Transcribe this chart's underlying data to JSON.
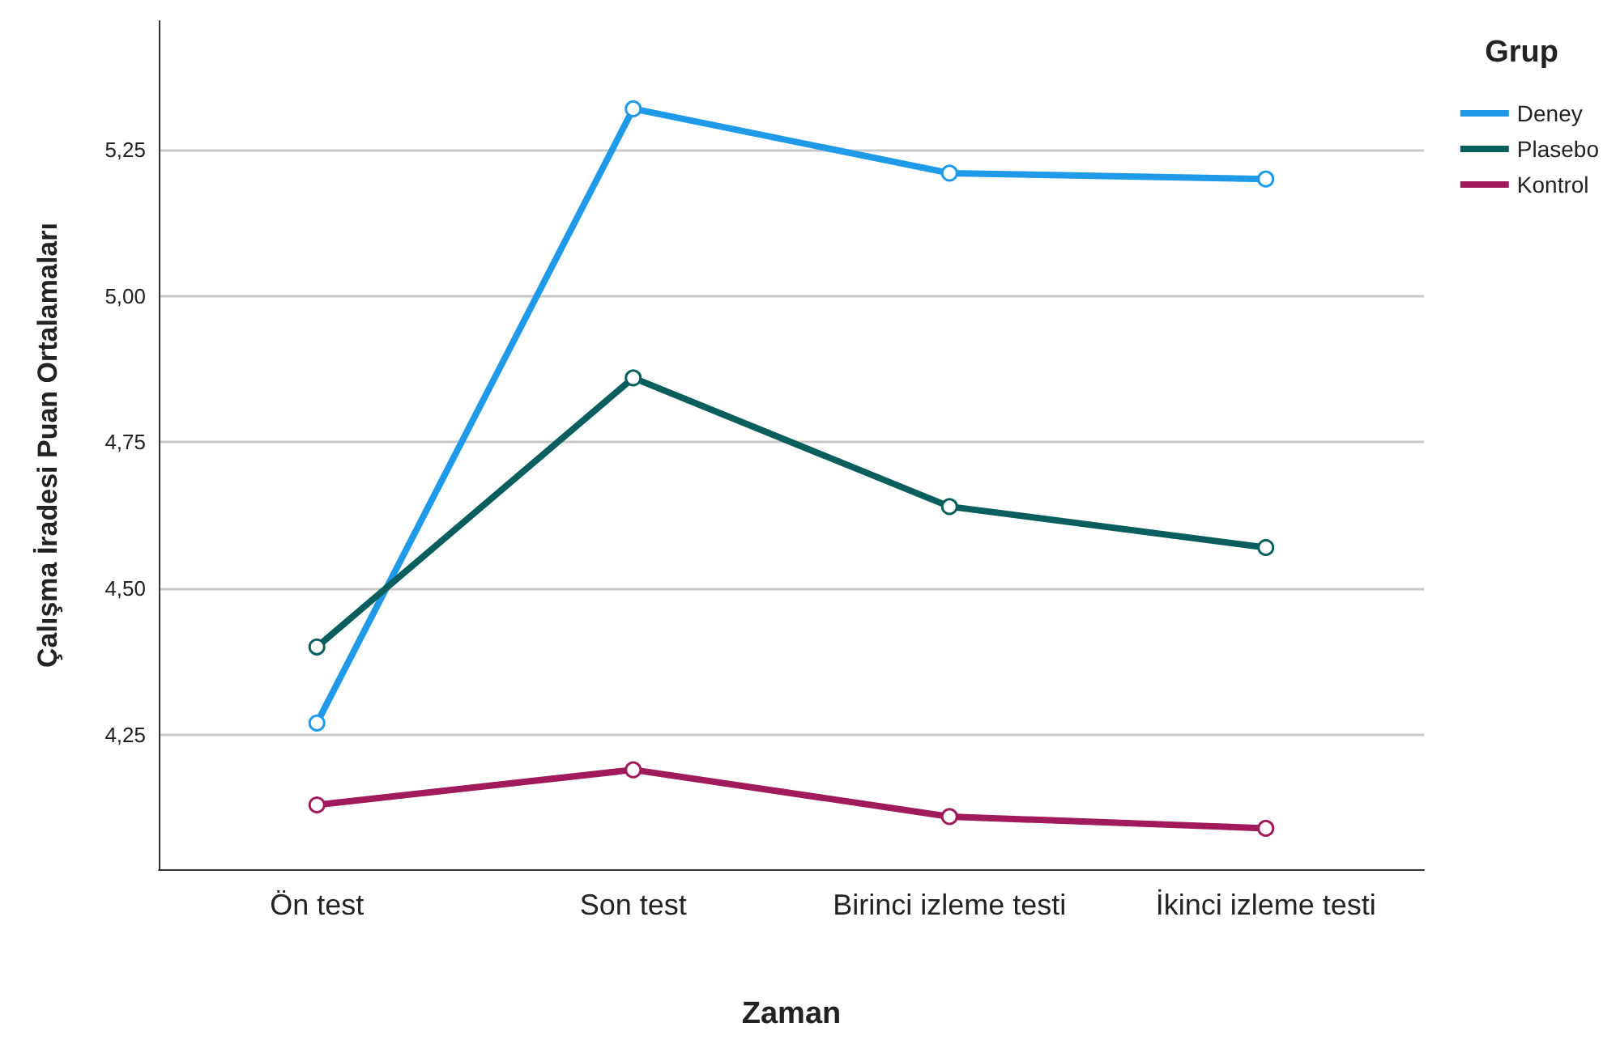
{
  "chart_data": {
    "type": "line",
    "xlabel": "Zaman",
    "ylabel": "Çalışma İradesi Puan Ortalamaları",
    "legend_title": "Grup",
    "legend": "top right",
    "grid": "y",
    "marker": "circle",
    "line_style": "solid",
    "categories": [
      "Ön test",
      "Son test",
      "Birinci izleme testi",
      "İkinci izleme testi"
    ],
    "ylim": [
      4.02,
      5.47
    ],
    "yticks": [
      {
        "value": 4.25,
        "label": "4,25"
      },
      {
        "value": 4.5,
        "label": "4,50"
      },
      {
        "value": 4.75,
        "label": "4,75"
      },
      {
        "value": 5.0,
        "label": "5,00"
      },
      {
        "value": 5.25,
        "label": "5,25"
      }
    ],
    "series": [
      {
        "name": "Deney",
        "color": "#1f9ae8",
        "values": [
          4.27,
          5.32,
          5.21,
          5.2
        ]
      },
      {
        "name": "Plasebo",
        "color": "#0b5e5e",
        "values": [
          4.4,
          4.86,
          4.64,
          4.57
        ]
      },
      {
        "name": "Kontrol",
        "color": "#a11a5a",
        "values": [
          4.13,
          4.19,
          4.11,
          4.09
        ]
      }
    ]
  }
}
